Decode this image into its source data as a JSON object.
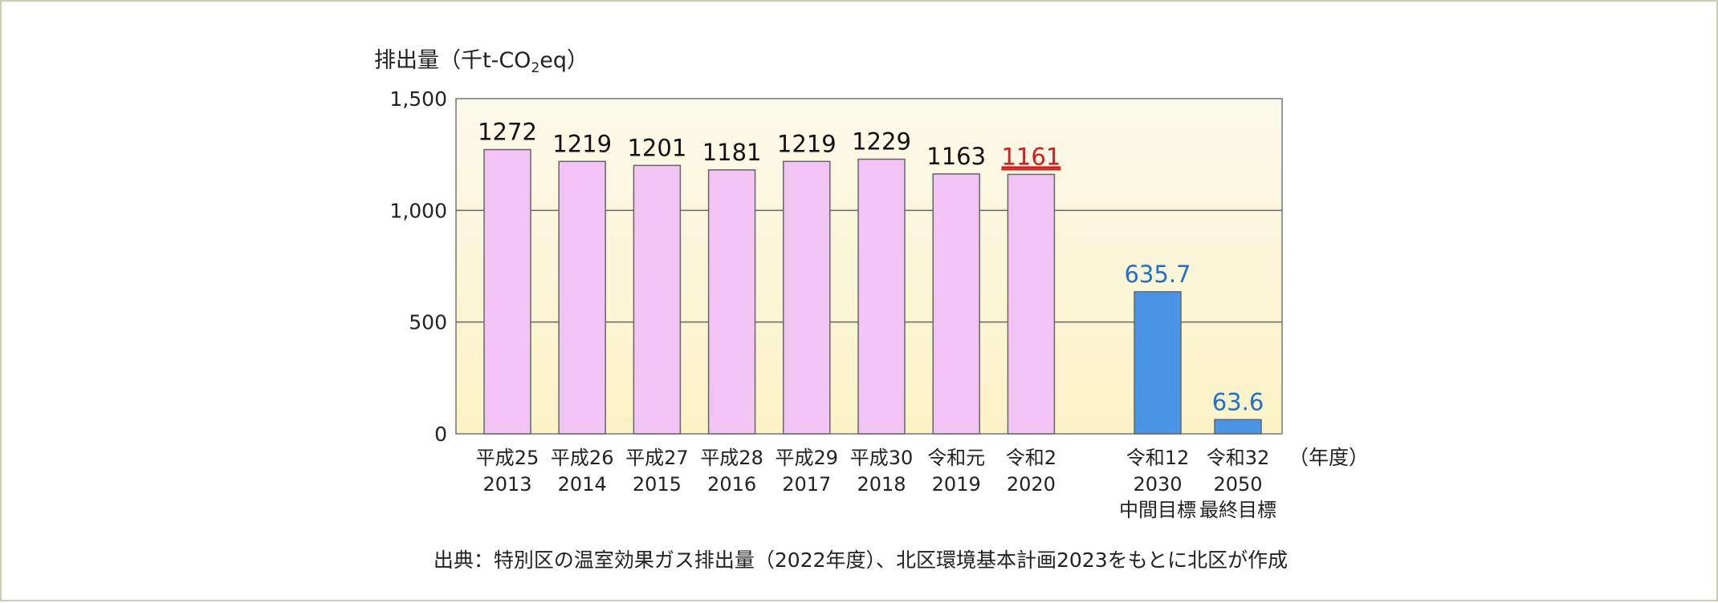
{
  "chart_data": {
    "type": "bar",
    "ylabel_main": "排出量（千t-CO",
    "ylabel_sub": "2",
    "ylabel_tail": "eq）",
    "x_unit": "（年度）",
    "ylim": [
      0,
      1500
    ],
    "yticks": [
      {
        "value": 0,
        "label": "0"
      },
      {
        "value": 500,
        "label": "500"
      },
      {
        "value": 1000,
        "label": "1,000"
      },
      {
        "value": 1500,
        "label": "1,500"
      }
    ],
    "bars": [
      {
        "era": "平成25",
        "year": "2013",
        "note": "",
        "value": 1272,
        "label": "1272",
        "kind": "actual",
        "color": "#f1c4f4"
      },
      {
        "era": "平成26",
        "year": "2014",
        "note": "",
        "value": 1219,
        "label": "1219",
        "kind": "actual",
        "color": "#f1c4f4"
      },
      {
        "era": "平成27",
        "year": "2015",
        "note": "",
        "value": 1201,
        "label": "1201",
        "kind": "actual",
        "color": "#f1c4f4"
      },
      {
        "era": "平成28",
        "year": "2016",
        "note": "",
        "value": 1181,
        "label": "1181",
        "kind": "actual",
        "color": "#f1c4f4"
      },
      {
        "era": "平成29",
        "year": "2017",
        "note": "",
        "value": 1219,
        "label": "1219",
        "kind": "actual",
        "color": "#f1c4f4"
      },
      {
        "era": "平成30",
        "year": "2018",
        "note": "",
        "value": 1229,
        "label": "1229",
        "kind": "actual",
        "color": "#f1c4f4"
      },
      {
        "era": "令和元",
        "year": "2019",
        "note": "",
        "value": 1163,
        "label": "1163",
        "kind": "actual",
        "color": "#f1c4f4"
      },
      {
        "era": "令和2",
        "year": "2020",
        "note": "",
        "value": 1161,
        "label": "1161",
        "kind": "highlight",
        "color": "#f1c4f4"
      },
      {
        "era": "令和12",
        "year": "2030",
        "note": "中間目標",
        "value": 635.7,
        "label": "635.7",
        "kind": "target",
        "color": "#4a94e6"
      },
      {
        "era": "令和32",
        "year": "2050",
        "note": "最終目標",
        "value": 63.6,
        "label": "63.6",
        "kind": "target",
        "color": "#4a94e6"
      }
    ],
    "grid": true,
    "colors": {
      "actual": "#f1c4f4",
      "target": "#4a94e6",
      "highlight_label": "#d91a1a",
      "target_label": "#1f6fd0"
    }
  },
  "source": "出典：特別区の温室効果ガス排出量（2022年度）、北区環境基本計画2023をもとに北区が作成"
}
